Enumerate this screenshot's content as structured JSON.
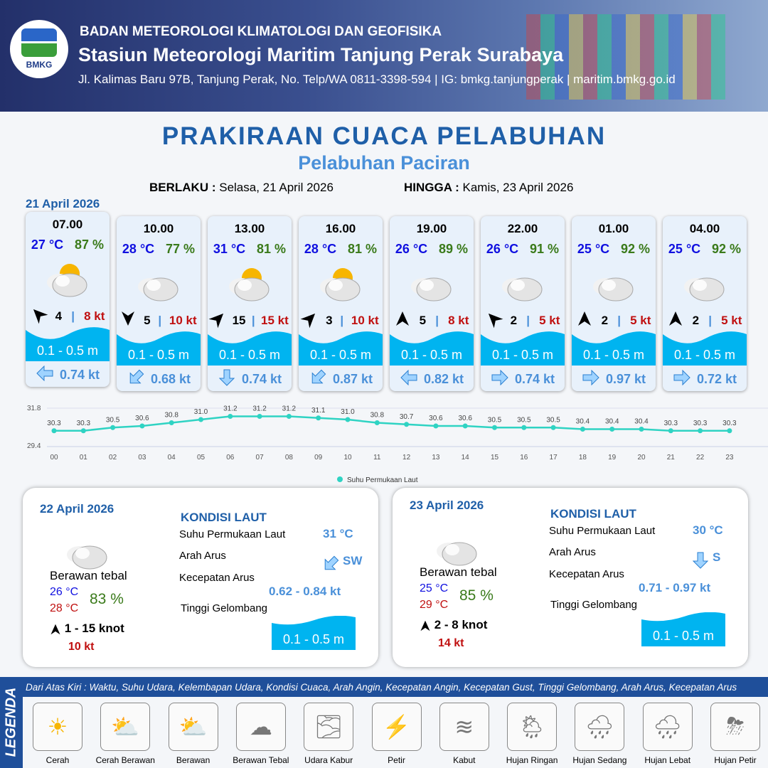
{
  "header": {
    "org": "BADAN METEOROLOGI KLIMATOLOGI DAN GEOFISIKA",
    "station": "Stasiun Meteorologi Maritim Tanjung Perak Surabaya",
    "address": "Jl. Kalimas Baru 97B, Tanjung Perak, No. Telp/WA 0811-3398-594 | IG: bmkg.tanjungperak | maritim.bmkg.go.id",
    "logo_text": "BMKG"
  },
  "title": "PRAKIRAAN CUACA PELABUHAN",
  "subtitle": "Pelabuhan Paciran",
  "validity": {
    "from_label": "BERLAKU :",
    "from": "Selasa, 21 April 2026",
    "to_label": "HINGGA :",
    "to": "Kamis, 23 April 2026"
  },
  "day1": {
    "date": "21 April 2026",
    "forecasts": [
      {
        "time": "07.00",
        "temp": "27 °C",
        "rh": "87 %",
        "weather": "Cerah Berawan",
        "wind_arrow": "NW",
        "wind": "4",
        "gust": "8 kt",
        "wave": "0.1 - 0.5 m",
        "current_arrow": "W",
        "current": "0.74 kt"
      },
      {
        "time": "10.00",
        "temp": "28 °C",
        "rh": "77 %",
        "weather": "Berawan Tebal",
        "wind_arrow": "S",
        "wind": "5",
        "gust": "10 kt",
        "wave": "0.1 - 0.5 m",
        "current_arrow": "SW",
        "current": "0.68 kt"
      },
      {
        "time": "13.00",
        "temp": "31 °C",
        "rh": "81 %",
        "weather": "Berawan",
        "wind_arrow": "NE",
        "wind": "15",
        "gust": "15 kt",
        "wave": "0.1 - 0.5 m",
        "current_arrow": "S",
        "current": "0.74 kt"
      },
      {
        "time": "16.00",
        "temp": "28 °C",
        "rh": "81 %",
        "weather": "Cerah Berawan",
        "wind_arrow": "NE",
        "wind": "3",
        "gust": "10 kt",
        "wave": "0.1 - 0.5 m",
        "current_arrow": "SW",
        "current": "0.87 kt"
      },
      {
        "time": "19.00",
        "temp": "26 °C",
        "rh": "89 %",
        "weather": "Berawan Tebal",
        "wind_arrow": "N",
        "wind": "5",
        "gust": "8 kt",
        "wave": "0.1 - 0.5 m",
        "current_arrow": "W",
        "current": "0.82 kt"
      },
      {
        "time": "22.00",
        "temp": "26 °C",
        "rh": "91 %",
        "weather": "Berawan Tebal",
        "wind_arrow": "NW",
        "wind": "2",
        "gust": "5 kt",
        "wave": "0.1 - 0.5 m",
        "current_arrow": "E",
        "current": "0.74 kt"
      },
      {
        "time": "01.00",
        "temp": "25 °C",
        "rh": "92 %",
        "weather": "Berawan Tebal",
        "wind_arrow": "N",
        "wind": "2",
        "gust": "5 kt",
        "wave": "0.1 - 0.5 m",
        "current_arrow": "E",
        "current": "0.97 kt"
      },
      {
        "time": "04.00",
        "temp": "25 °C",
        "rh": "92 %",
        "weather": "Berawan Tebal",
        "wind_arrow": "N",
        "wind": "2",
        "gust": "5 kt",
        "wave": "0.1 - 0.5 m",
        "current_arrow": "E",
        "current": "0.72 kt"
      }
    ]
  },
  "chart_data": {
    "type": "line",
    "categories": [
      "00",
      "01",
      "02",
      "03",
      "04",
      "05",
      "06",
      "07",
      "08",
      "09",
      "10",
      "11",
      "12",
      "13",
      "14",
      "15",
      "16",
      "17",
      "18",
      "19",
      "20",
      "21",
      "22",
      "23"
    ],
    "series": [
      {
        "name": "Suhu Permukaan Laut",
        "values": [
          30.3,
          30.3,
          30.5,
          30.6,
          30.8,
          31.0,
          31.2,
          31.2,
          31.2,
          31.1,
          31.0,
          30.8,
          30.7,
          30.6,
          30.6,
          30.5,
          30.5,
          30.5,
          30.4,
          30.4,
          30.4,
          30.3,
          30.3,
          30.3
        ]
      }
    ],
    "yticks": [
      "31.8",
      "29.4"
    ],
    "ylim": [
      29.4,
      31.8
    ],
    "legend": "bottom",
    "color": "#2fd3c3",
    "grid": true
  },
  "days": [
    {
      "date": "22 April 2026",
      "weather": "Berawan tebal",
      "tmin": "26 °C",
      "tmax": "28 °C",
      "rh": "83 %",
      "wind": "1  - 15 knot",
      "gust": "10 kt",
      "sea_title": "KONDISI LAUT",
      "sst_label": "Suhu Permukaan Laut",
      "sst": "31 °C",
      "dir_label": "Arah Arus",
      "dir": "SW",
      "speed_label": "Kecepatan Arus",
      "speed": "0.62  - 0.84 kt",
      "wave_label": "Tinggi Gelombang",
      "wave": "0.1 - 0.5 m"
    },
    {
      "date": "23 April 2026",
      "weather": "Berawan tebal",
      "tmin": "25 °C",
      "tmax": "29 °C",
      "rh": "85 %",
      "wind": "2  - 8 knot",
      "gust": "14 kt",
      "sea_title": "KONDISI LAUT",
      "sst_label": "Suhu Permukaan Laut",
      "sst": "30 °C",
      "dir_label": "Arah Arus",
      "dir": "S",
      "speed_label": "Kecepatan Arus",
      "speed": "0.71  - 0.97 kt",
      "wave_label": "Tinggi Gelombang",
      "wave": "0.1 - 0.5 m"
    }
  ],
  "legend": {
    "title": "LEGENDA",
    "description": "Dari Atas Kiri : Waktu, Suhu Udara, Kelembapan Udara, Kondisi Cuaca, Arah Angin, Kecepatan Angin, Kecepatan Gust, Tinggi Gelombang, Arah Arus, Kecepatan Arus",
    "items": [
      {
        "label": "Cerah",
        "icon": "sun-icon"
      },
      {
        "label": "Cerah Berawan",
        "icon": "sun-cloud-icon"
      },
      {
        "label": "Berawan",
        "icon": "cloud-sun-icon"
      },
      {
        "label": "Berawan Tebal",
        "icon": "cloud-icon"
      },
      {
        "label": "Udara Kabur",
        "icon": "haze-icon"
      },
      {
        "label": "Petir",
        "icon": "lightning-icon"
      },
      {
        "label": "Kabut",
        "icon": "fog-icon"
      },
      {
        "label": "Hujan Ringan",
        "icon": "light-rain-icon"
      },
      {
        "label": "Hujan Sedang",
        "icon": "rain-icon"
      },
      {
        "label": "Hujan Lebat",
        "icon": "heavy-rain-icon"
      },
      {
        "label": "Hujan Petir",
        "icon": "thunderstorm-icon"
      }
    ]
  }
}
